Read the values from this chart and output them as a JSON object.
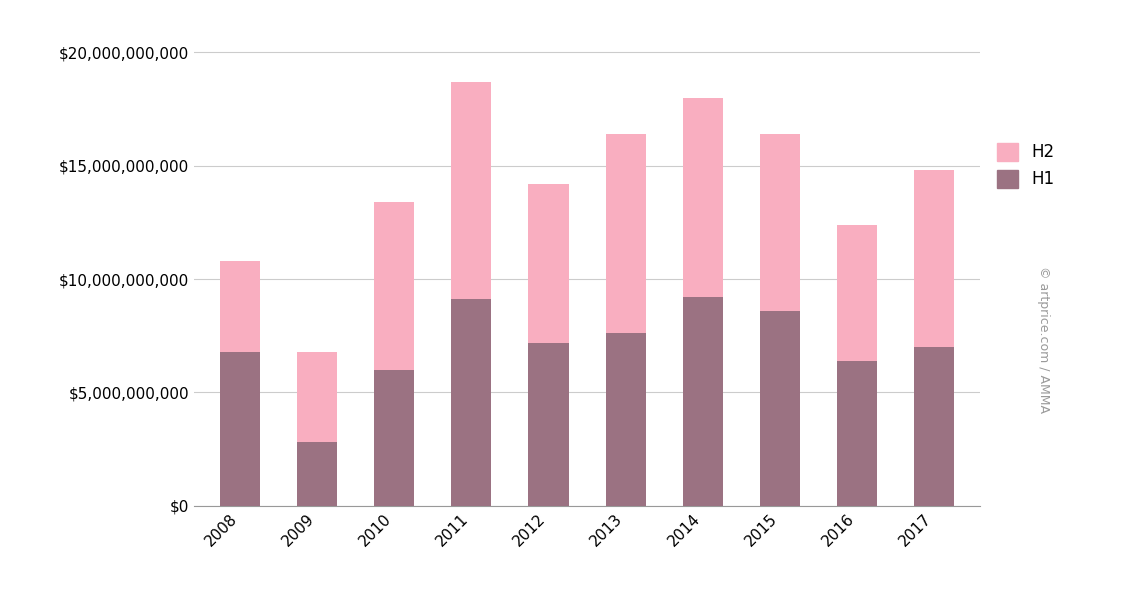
{
  "years": [
    2008,
    2009,
    2010,
    2011,
    2012,
    2013,
    2014,
    2015,
    2016,
    2017
  ],
  "H1": [
    6800000000,
    2800000000,
    6000000000,
    9100000000,
    7200000000,
    7600000000,
    9200000000,
    8600000000,
    6400000000,
    7000000000
  ],
  "H2": [
    4000000000,
    4000000000,
    7400000000,
    9600000000,
    7000000000,
    8800000000,
    8800000000,
    7800000000,
    6000000000,
    7800000000
  ],
  "h2_color": "#f9aec0",
  "h1_color": "#9b7282",
  "background_color": "#ffffff",
  "grid_color": "#cccccc",
  "ylim": [
    0,
    21000000000
  ],
  "yticks": [
    0,
    5000000000,
    10000000000,
    15000000000,
    20000000000
  ],
  "bar_width": 0.52,
  "legend_labels": [
    "H2",
    "H1"
  ],
  "watermark": "© artprice.com / AMMA"
}
